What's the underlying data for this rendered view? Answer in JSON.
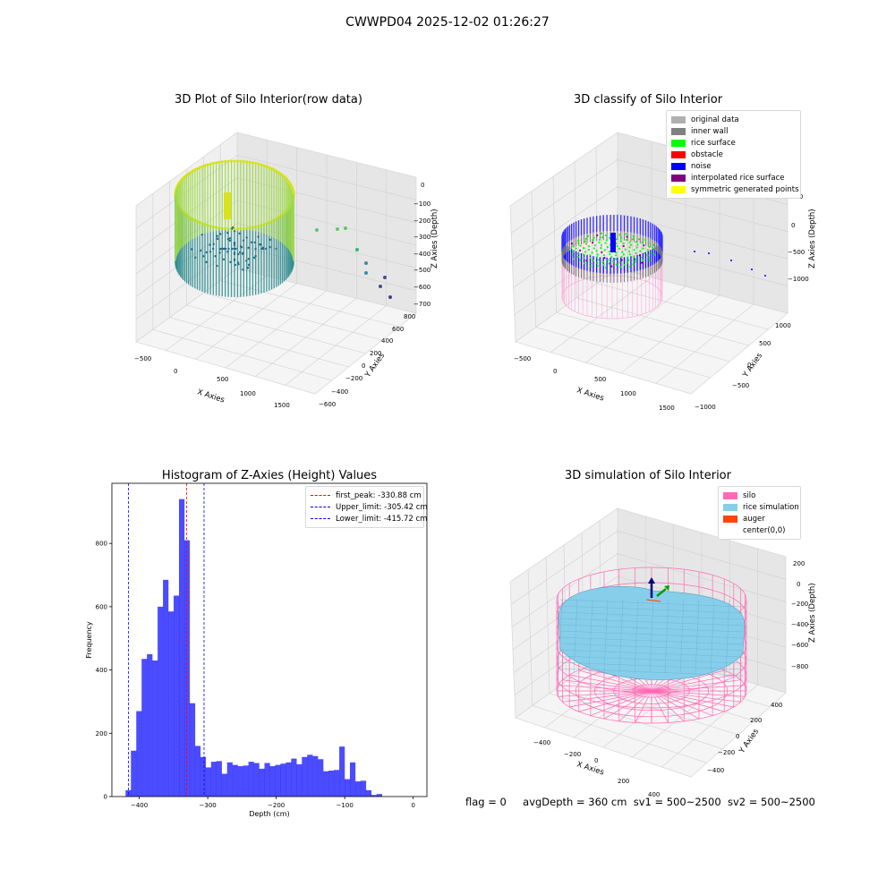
{
  "figure": {
    "suptitle": "CWWPD04 2025-12-02 01:26:27",
    "status": {
      "flag": "flag = 0",
      "avg_depth": "avgDepth = 360 cm",
      "sv1": "sv1 = 500~2500",
      "sv2": "sv2 = 500~2500"
    }
  },
  "plots": {
    "raw": {
      "title": "3D Plot of Silo Interior(row data)",
      "xlabel": "X Axies",
      "ylabel": "Y Axies",
      "zlabel": "Z Axies (Depth)",
      "xticks": [
        "−500",
        "0",
        "500",
        "1000",
        "1500"
      ],
      "yticks": [
        "−600",
        "−400",
        "−200",
        "0",
        "200",
        "400",
        "600",
        "800"
      ],
      "zticks": [
        "0",
        "−100",
        "−200",
        "−300",
        "−400",
        "−500",
        "−600",
        "−700"
      ]
    },
    "classify": {
      "title": "3D classify of Silo Interior",
      "xlabel": "X Axies",
      "ylabel": "Y Axies",
      "zlabel": "Z Axies (Depth)",
      "xticks": [
        "−500",
        "0",
        "500",
        "1000",
        "1500"
      ],
      "yticks": [
        "−1000",
        "−500",
        "0",
        "500",
        "1000"
      ],
      "zticks": [
        "500",
        "0",
        "−500",
        "−1000"
      ],
      "legend": [
        {
          "label": "original data",
          "color": "#b0b0b0"
        },
        {
          "label": "inner wall",
          "color": "#808080"
        },
        {
          "label": "rice surface",
          "color": "#00ff00"
        },
        {
          "label": "obstacle",
          "color": "#ff0000"
        },
        {
          "label": "noise",
          "color": "#0000ff"
        },
        {
          "label": "interpolated rice surface",
          "color": "#800080"
        },
        {
          "label": "symmetric generated points",
          "color": "#ffff00"
        }
      ]
    },
    "simulation": {
      "title": "3D simulation of Silo Interior",
      "xlabel": "X Axies",
      "ylabel": "Y Axies",
      "zlabel": "Z Axies (Depth)",
      "xticks": [
        "−400",
        "−200",
        "0",
        "200",
        "400"
      ],
      "yticks": [
        "−400",
        "−200",
        "0",
        "200",
        "400"
      ],
      "zticks": [
        "200",
        "0",
        "−200",
        "−400",
        "−600",
        "−800"
      ],
      "legend": [
        {
          "label": "silo",
          "color": "#ff69b4"
        },
        {
          "label": "rice simulation",
          "color": "#87ceeb"
        },
        {
          "label": "auger",
          "color": "#ff4500"
        },
        {
          "label": "center(0,0)",
          "color": ""
        }
      ]
    }
  },
  "chart_data": {
    "type": "bar",
    "title": "Histogram of Z-Axies (Height) Values",
    "xlabel": "Depth (cm)",
    "ylabel": "Frequency",
    "bar_color": "#0000ff",
    "xlim": [
      -440,
      20
    ],
    "ylim": [
      0,
      990
    ],
    "xticks": [
      -400,
      -300,
      -200,
      -100,
      0
    ],
    "yticks": [
      0,
      200,
      400,
      600,
      800
    ],
    "bin_start": -420,
    "bin_width": 7.8,
    "values": [
      20,
      145,
      270,
      435,
      450,
      430,
      600,
      685,
      585,
      635,
      940,
      810,
      295,
      160,
      125,
      92,
      110,
      112,
      72,
      108,
      100,
      96,
      98,
      110,
      106,
      88,
      106,
      96,
      100,
      104,
      108,
      120,
      102,
      125,
      132,
      128,
      118,
      80,
      82,
      84,
      158,
      55,
      108,
      48,
      50,
      20,
      5,
      8
    ],
    "reference_lines": [
      {
        "label": "first_peak: -330.88 cm",
        "x": -330.88,
        "color": "#ff0000"
      },
      {
        "label": "Upper_limit: -305.42 cm",
        "x": -305.42,
        "color": "#0000ff"
      },
      {
        "label": "Lower_limit: -415.72 cm",
        "x": -415.72,
        "color": "#0000ff"
      }
    ]
  }
}
